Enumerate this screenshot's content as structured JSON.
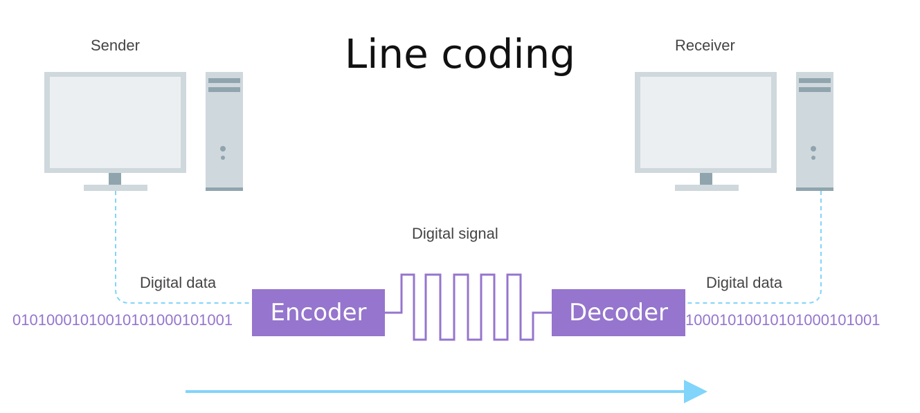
{
  "title": "Line coding",
  "sender": {
    "label": "Sender"
  },
  "receiver": {
    "label": "Receiver"
  },
  "signal_label": "Digital signal",
  "left_data_label": "Digital data",
  "right_data_label": "Digital data",
  "encoder_label": "Encoder",
  "decoder_label": "Decoder",
  "left_bits": "01010001010010101000101001",
  "right_bits": "10001010010101000101001",
  "colors": {
    "accent": "#9575cd",
    "arrow": "#81d4fa",
    "dashed": "#81d4fa",
    "computer": "#cfd8dc",
    "screen": "#eceff1",
    "stand": "#90a4ae"
  },
  "icons": {
    "sender": "desktop-computer-icon",
    "receiver": "desktop-computer-icon"
  }
}
